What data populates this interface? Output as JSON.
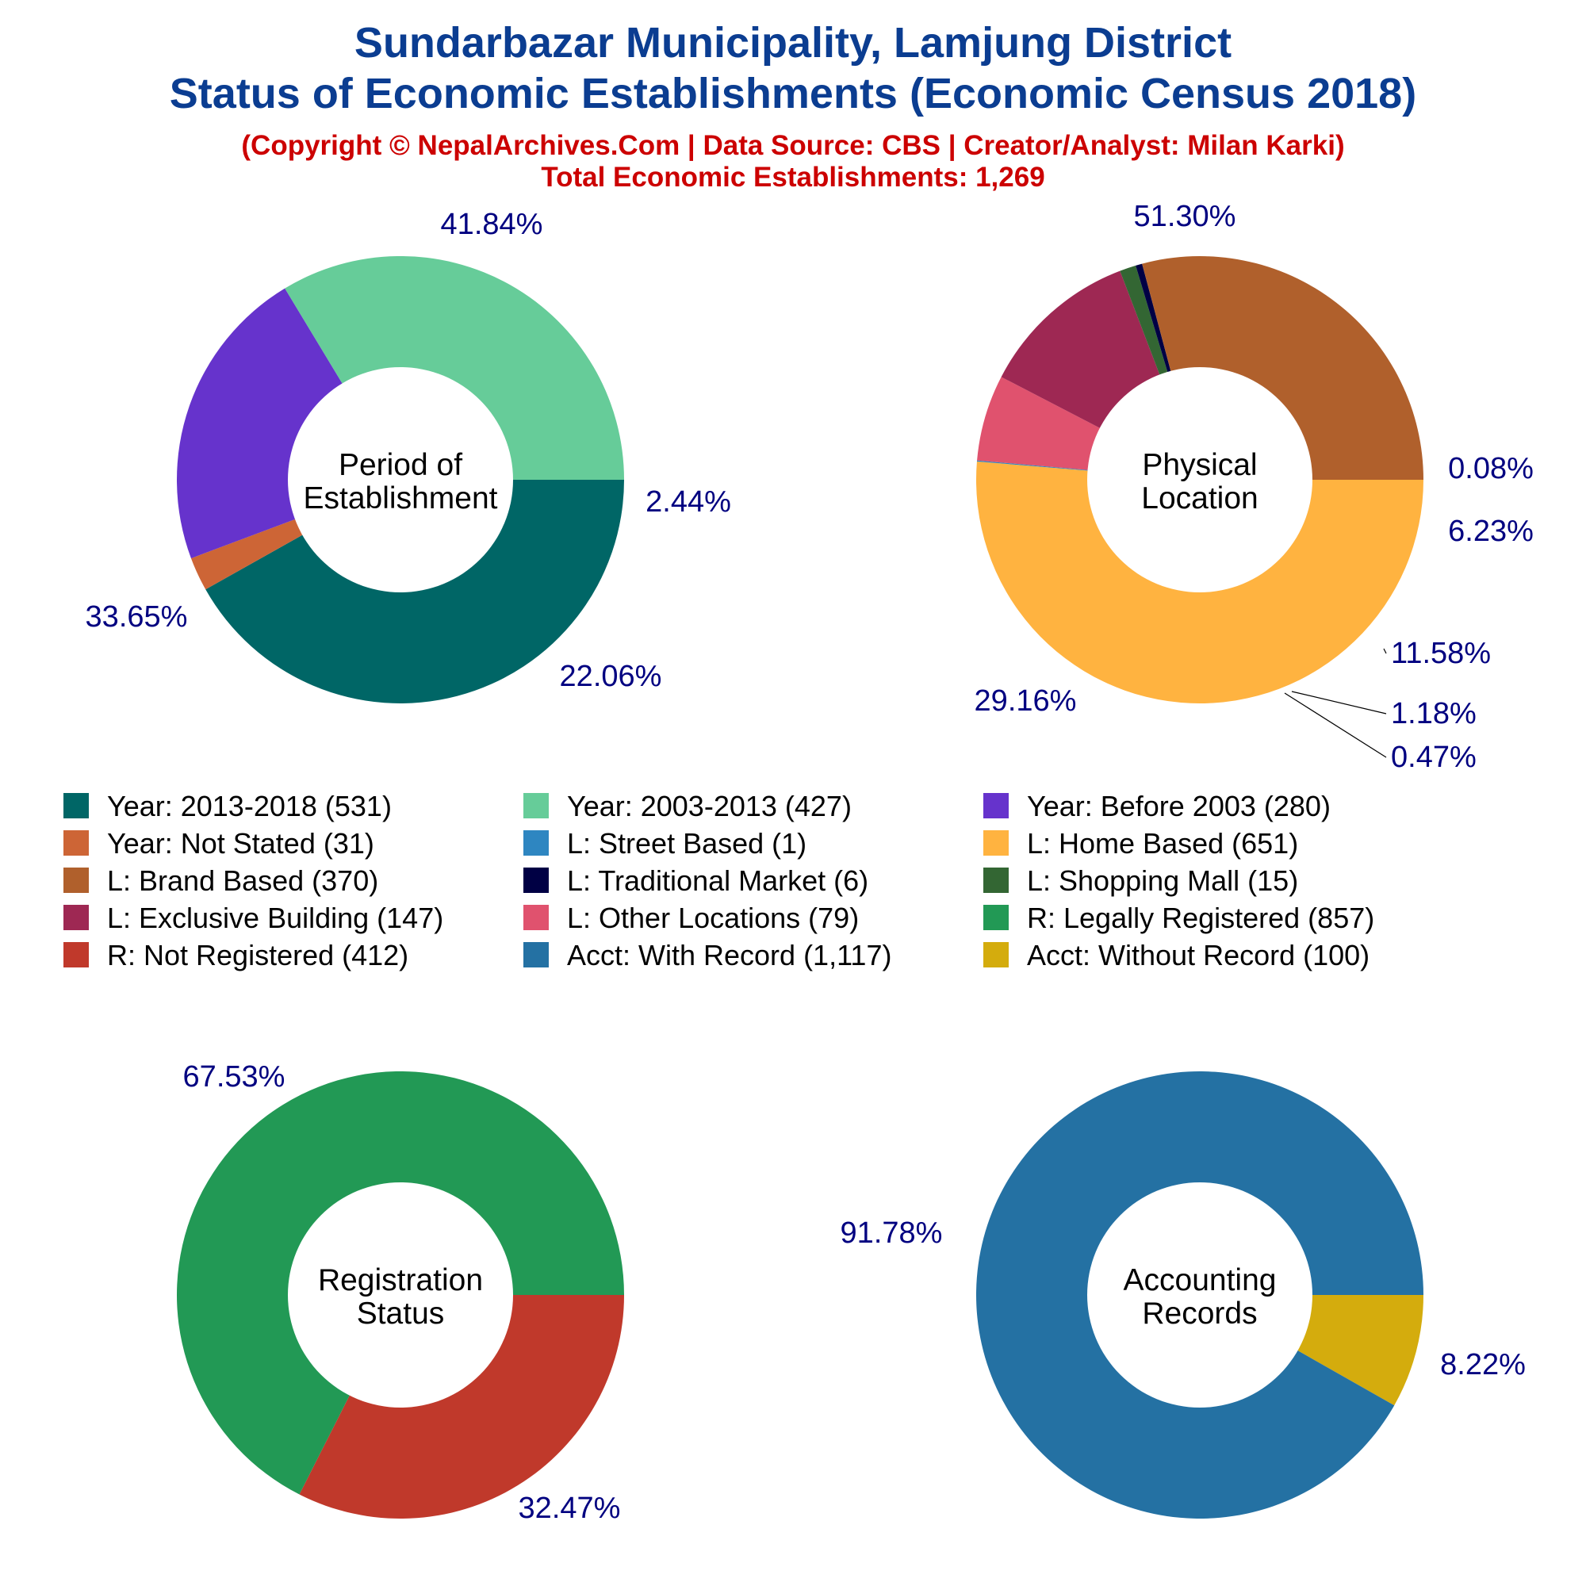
{
  "header": {
    "title_line1": "Sundarbazar Municipality, Lamjung District",
    "title_line2": "Status of Economic Establishments (Economic Census 2018)",
    "subtitle_line1": "(Copyright © NepalArchives.Com | Data Source: CBS | Creator/Analyst: Milan Karki)",
    "subtitle_line2": "Total Economic Establishments: 1,269"
  },
  "colors": {
    "title": "#0b3d91",
    "subtitle": "#cc0000",
    "percent_label": "#000080"
  },
  "chart_data": [
    {
      "type": "donut",
      "center_label": [
        "Period of",
        "Establishment"
      ],
      "slices": [
        {
          "label": "Year: 2013-2018",
          "value": 531,
          "pct_label": "41.84%",
          "color": "#006666"
        },
        {
          "label": "Year: Not Stated",
          "value": 31,
          "pct_label": "2.44%",
          "color": "#cd6536"
        },
        {
          "label": "Year: Before 2003",
          "value": 280,
          "pct_label": "22.06%",
          "color": "#6633cc"
        },
        {
          "label": "Year: 2003-2013",
          "value": 427,
          "pct_label": "33.65%",
          "color": "#66cc99"
        }
      ]
    },
    {
      "type": "donut",
      "center_label": [
        "Physical",
        "Location"
      ],
      "slices": [
        {
          "label": "L: Home Based",
          "value": 651,
          "pct_label": "51.30%",
          "color": "#ffb340"
        },
        {
          "label": "L: Street Based",
          "value": 1,
          "pct_label": "0.08%",
          "color": "#2e86c1"
        },
        {
          "label": "L: Other Locations",
          "value": 79,
          "pct_label": "6.23%",
          "color": "#e0526e"
        },
        {
          "label": "L: Exclusive Building",
          "value": 147,
          "pct_label": "11.58%",
          "color": "#9e2853"
        },
        {
          "label": "L: Shopping Mall",
          "value": 15,
          "pct_label": "1.18%",
          "color": "#336633"
        },
        {
          "label": "L: Traditional Market",
          "value": 6,
          "pct_label": "0.47%",
          "color": "#000044"
        },
        {
          "label": "L: Brand Based",
          "value": 370,
          "pct_label": "29.16%",
          "color": "#b0602c"
        }
      ]
    },
    {
      "type": "donut",
      "center_label": [
        "Registration",
        "Status"
      ],
      "slices": [
        {
          "label": "R: Not Registered",
          "value": 412,
          "pct_label": "32.47%",
          "color": "#c0392b"
        },
        {
          "label": "R: Legally Registered",
          "value": 857,
          "pct_label": "67.53%",
          "color": "#229955"
        }
      ]
    },
    {
      "type": "donut",
      "center_label": [
        "Accounting",
        "Records"
      ],
      "slices": [
        {
          "label": "Acct: Without Record",
          "value": 100,
          "pct_label": "8.22%",
          "color": "#d4ac0d"
        },
        {
          "label": "Acct: With Record",
          "value": 1117,
          "pct_label": "91.78%",
          "color": "#2471a3"
        }
      ]
    }
  ],
  "legend": [
    {
      "text": "Year: 2013-2018 (531)",
      "color": "#006666"
    },
    {
      "text": "Year: 2003-2013 (427)",
      "color": "#66cc99"
    },
    {
      "text": "Year: Before 2003 (280)",
      "color": "#6633cc"
    },
    {
      "text": "Year: Not Stated (31)",
      "color": "#cd6536"
    },
    {
      "text": "L: Street Based (1)",
      "color": "#2e86c1"
    },
    {
      "text": "L: Home Based (651)",
      "color": "#ffb340"
    },
    {
      "text": "L: Brand Based (370)",
      "color": "#b0602c"
    },
    {
      "text": "L: Traditional Market (6)",
      "color": "#000044"
    },
    {
      "text": "L: Shopping Mall (15)",
      "color": "#336633"
    },
    {
      "text": "L: Exclusive Building (147)",
      "color": "#9e2853"
    },
    {
      "text": "L: Other Locations (79)",
      "color": "#e0526e"
    },
    {
      "text": "R: Legally Registered (857)",
      "color": "#229955"
    },
    {
      "text": "R: Not Registered (412)",
      "color": "#c0392b"
    },
    {
      "text": "Acct: With Record (1,117)",
      "color": "#2471a3"
    },
    {
      "text": "Acct: Without Record (100)",
      "color": "#d4ac0d"
    }
  ]
}
